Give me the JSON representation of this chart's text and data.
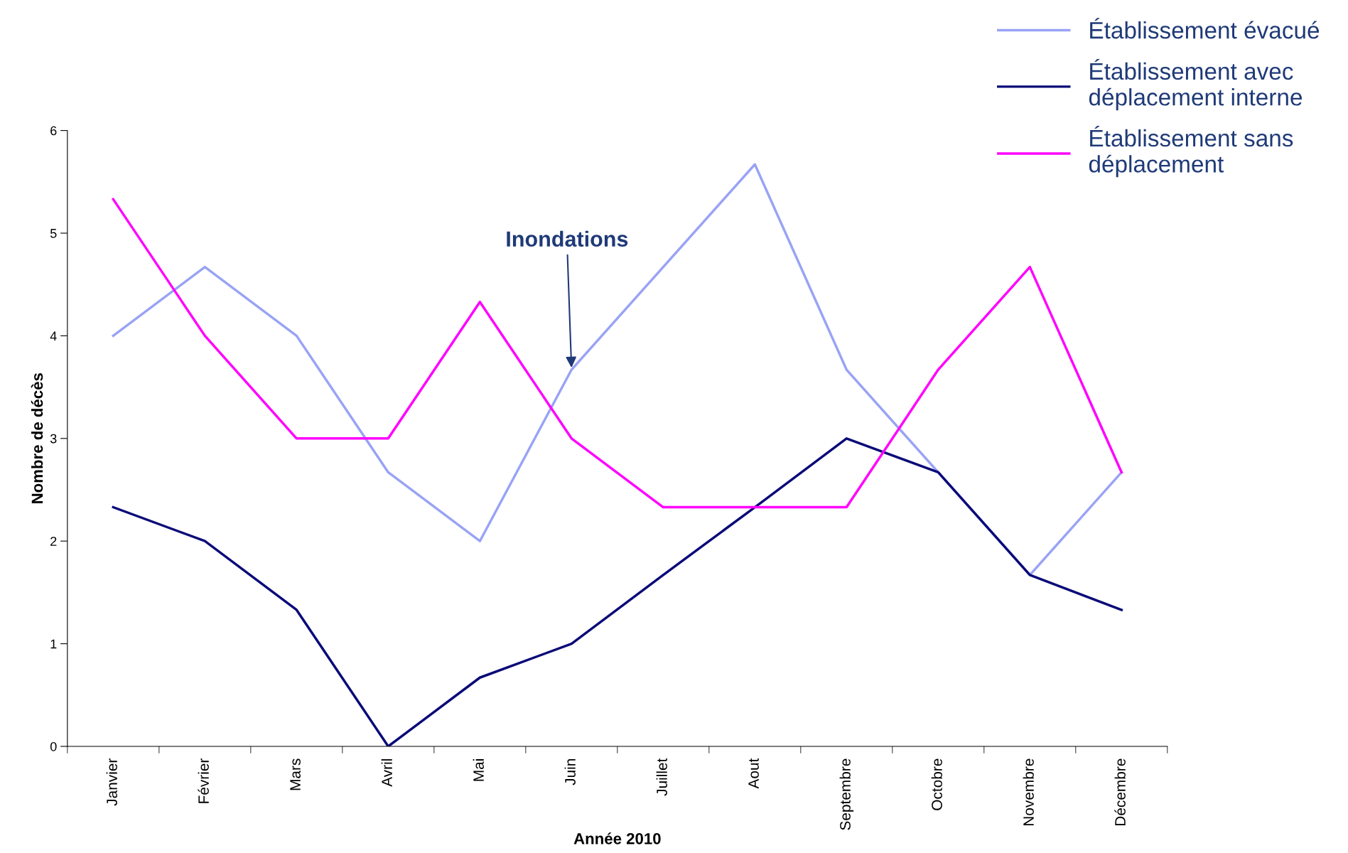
{
  "chart_data": {
    "type": "line",
    "xlabel": "Année 2010",
    "ylabel": "Nombre de décès",
    "categories": [
      "Janvier",
      "Février",
      "Mars",
      "Avril",
      "Mai",
      "Juin",
      "Juillet",
      "Aout",
      "Septembre",
      "Octobre",
      "Novembre",
      "Décembre"
    ],
    "series": [
      {
        "name": "Établissement évacué",
        "color": "#99a3f5",
        "values": [
          4,
          4.67,
          4,
          2.67,
          2,
          3.67,
          4.67,
          5.67,
          3.67,
          2.67,
          1.67,
          2.67
        ]
      },
      {
        "name": "Établissement avec\ndéplacement interne",
        "color": "#0a0a78",
        "values": [
          2.33,
          2,
          1.33,
          0,
          0.67,
          1,
          1.67,
          2.33,
          3,
          2.67,
          1.67,
          1.33
        ]
      },
      {
        "name": "Établissement sans\ndéplacement",
        "color": "#ff00ff",
        "values": [
          5.33,
          4,
          3,
          3,
          4.33,
          3,
          2.33,
          2.33,
          2.33,
          3.67,
          4.67,
          2.67
        ]
      }
    ],
    "ylim": [
      0,
      6
    ],
    "yticks": [
      0,
      1,
      2,
      3,
      4,
      5,
      6
    ],
    "grid": false,
    "legend": "top right",
    "marker": "none",
    "line_style": "solid",
    "annotations": [
      {
        "text": "Inondations",
        "x": "Juin",
        "y": 3.67
      }
    ]
  }
}
